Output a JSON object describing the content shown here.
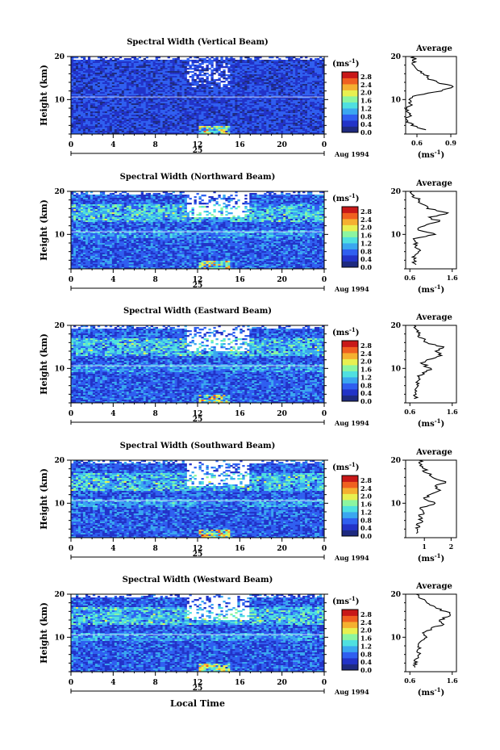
{
  "chart_data": {
    "type": "heatmap",
    "colorbar": {
      "unit": "(ms",
      "unit_exp": "-1",
      "unit_close": ")",
      "ticks": [
        "2.8",
        "2.4",
        "2.0",
        "1.6",
        "1.2",
        "0.8",
        "0.4",
        "0.0"
      ],
      "range": [
        0.0,
        3.0
      ],
      "colors": [
        "#1e2a80",
        "#2233c8",
        "#2f5ff0",
        "#3aa7f0",
        "#4fe0e0",
        "#8cf5a0",
        "#e8f050",
        "#f5b030",
        "#f06020",
        "#c81818"
      ]
    },
    "xaxis": {
      "ticks": [
        "0",
        "4",
        "8",
        "12",
        "16",
        "20",
        "0"
      ],
      "values": [
        0,
        4,
        8,
        12,
        16,
        20,
        24
      ],
      "range": [
        0,
        24
      ],
      "day_label": "25",
      "month_label": "Aug 1994",
      "label": "Local Time"
    },
    "yaxis": {
      "label": "Height (km)",
      "ticks": [
        "20",
        "10"
      ],
      "values": [
        20,
        10
      ],
      "range": [
        2,
        20
      ]
    },
    "profile_axis_title": "Average",
    "panels": [
      {
        "title": "Spectral Width (Vertical Beam)",
        "profile_ticks": [
          "0.6",
          "0.9"
        ],
        "profile_tick_values": [
          0.6,
          0.9
        ],
        "profile_xrange": [
          0.5,
          0.95
        ],
        "profile": [
          [
            3.0,
            0.68
          ],
          [
            4.0,
            0.55
          ],
          [
            5.0,
            0.52
          ],
          [
            6.0,
            0.53
          ],
          [
            7.0,
            0.52
          ],
          [
            8.0,
            0.51
          ],
          [
            9.0,
            0.54
          ],
          [
            10.0,
            0.53
          ],
          [
            11.0,
            0.6
          ],
          [
            12.0,
            0.82
          ],
          [
            13.0,
            0.92
          ],
          [
            14.0,
            0.78
          ],
          [
            15.0,
            0.7
          ],
          [
            16.0,
            0.66
          ],
          [
            17.0,
            0.6
          ],
          [
            18.0,
            0.57
          ],
          [
            19.0,
            0.56
          ],
          [
            20.0,
            0.58
          ]
        ]
      },
      {
        "title": "Spectral Width (Northward Beam)",
        "profile_ticks": [
          "0.6",
          "1.6"
        ],
        "profile_tick_values": [
          0.6,
          1.6
        ],
        "profile_xrange": [
          0.5,
          1.7
        ],
        "profile": [
          [
            3.0,
            0.75
          ],
          [
            4.0,
            0.7
          ],
          [
            5.0,
            0.72
          ],
          [
            6.0,
            0.8
          ],
          [
            7.0,
            0.72
          ],
          [
            8.0,
            0.78
          ],
          [
            9.0,
            0.68
          ],
          [
            10.0,
            1.2
          ],
          [
            11.0,
            0.8
          ],
          [
            12.0,
            0.95
          ],
          [
            13.0,
            1.3
          ],
          [
            14.0,
            1.05
          ],
          [
            15.0,
            1.5
          ],
          [
            16.0,
            1.0
          ],
          [
            17.0,
            0.9
          ],
          [
            18.0,
            0.8
          ],
          [
            19.0,
            0.7
          ],
          [
            20.0,
            0.65
          ]
        ]
      },
      {
        "title": "Spectral Width (Eastward Beam)",
        "profile_ticks": [
          "0.6",
          "1.6"
        ],
        "profile_tick_values": [
          0.6,
          1.6
        ],
        "profile_xrange": [
          0.5,
          1.7
        ],
        "profile": [
          [
            3.0,
            0.7
          ],
          [
            4.0,
            0.75
          ],
          [
            5.0,
            0.72
          ],
          [
            6.0,
            0.8
          ],
          [
            7.0,
            0.78
          ],
          [
            8.0,
            0.82
          ],
          [
            9.0,
            0.9
          ],
          [
            10.0,
            1.1
          ],
          [
            11.0,
            0.9
          ],
          [
            12.0,
            1.0
          ],
          [
            13.0,
            1.35
          ],
          [
            14.0,
            1.2
          ],
          [
            15.0,
            1.4
          ],
          [
            16.0,
            1.0
          ],
          [
            17.0,
            0.9
          ],
          [
            18.0,
            0.8
          ],
          [
            19.0,
            0.75
          ],
          [
            20.0,
            0.7
          ]
        ]
      },
      {
        "title": "Spectral Width (Southward Beam)",
        "profile_ticks": [
          "1",
          "2"
        ],
        "profile_tick_values": [
          1,
          2
        ],
        "profile_xrange": [
          0.3,
          2.2
        ],
        "profile": [
          [
            3.0,
            0.7
          ],
          [
            4.0,
            0.75
          ],
          [
            5.0,
            0.7
          ],
          [
            6.0,
            0.9
          ],
          [
            7.0,
            0.8
          ],
          [
            8.0,
            0.95
          ],
          [
            9.0,
            0.85
          ],
          [
            10.0,
            1.4
          ],
          [
            11.0,
            1.0
          ],
          [
            12.0,
            1.2
          ],
          [
            13.0,
            1.6
          ],
          [
            14.0,
            1.4
          ],
          [
            15.0,
            1.8
          ],
          [
            16.0,
            1.3
          ],
          [
            17.0,
            1.1
          ],
          [
            18.0,
            1.0
          ],
          [
            19.0,
            0.9
          ],
          [
            20.0,
            0.8
          ]
        ]
      },
      {
        "title": "Spectral Width (Westward Beam)",
        "profile_ticks": [
          "0.6",
          "1.6"
        ],
        "profile_tick_values": [
          0.6,
          1.6
        ],
        "profile_xrange": [
          0.5,
          1.7
        ],
        "profile": [
          [
            3.0,
            0.72
          ],
          [
            4.0,
            0.7
          ],
          [
            5.0,
            0.75
          ],
          [
            6.0,
            0.82
          ],
          [
            7.0,
            0.78
          ],
          [
            8.0,
            0.8
          ],
          [
            9.0,
            0.85
          ],
          [
            10.0,
            1.0
          ],
          [
            11.0,
            0.9
          ],
          [
            12.0,
            1.1
          ],
          [
            13.0,
            1.4
          ],
          [
            14.0,
            1.3
          ],
          [
            15.0,
            1.55
          ],
          [
            16.0,
            1.45
          ],
          [
            17.0,
            1.2
          ],
          [
            18.0,
            1.0
          ],
          [
            19.0,
            0.85
          ],
          [
            20.0,
            0.75
          ]
        ]
      }
    ]
  }
}
